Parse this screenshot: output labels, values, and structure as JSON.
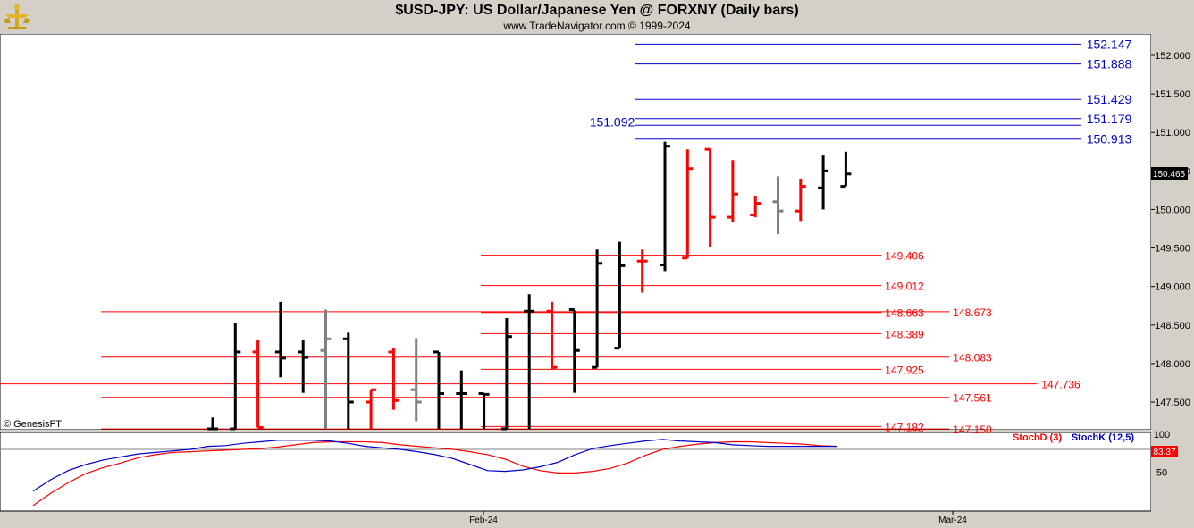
{
  "header": {
    "title": "$USD-JPY:  US Dollar/Japanese Yen @ FORXNY  (Daily bars)",
    "subtitle": "www.TradeNavigator.com © 1999-2024",
    "logo_icon": "gold-trophy-icon"
  },
  "watermark": "© GenesisFT",
  "chart_data": [
    {
      "type": "ohlc",
      "title": "$USD-JPY:  US Dollar/Japanese Yen @ FORXNY  (Daily bars)",
      "y_axis_ticks": [
        "152.000",
        "151.500",
        "151.000",
        "150.500",
        "150.000",
        "149.500",
        "149.000",
        "148.500",
        "148.000",
        "147.500"
      ],
      "ylim": [
        147.15,
        152.35
      ],
      "last_price": "150.465",
      "x_ticks": [
        "Feb-24",
        "Mar-24"
      ],
      "colors": {
        "up": "#000000",
        "down": "#ff0000",
        "neutral": "#808080"
      },
      "bars": [
        {
          "o": 147.13,
          "h": 147.3,
          "l": 147.13,
          "c": 147.15,
          "color": "black"
        },
        {
          "o": 147.15,
          "h": 148.53,
          "l": 147.15,
          "c": 148.15,
          "color": "black"
        },
        {
          "o": 148.15,
          "h": 148.3,
          "l": 147.17,
          "c": 147.17,
          "color": "red"
        },
        {
          "o": 148.15,
          "h": 148.8,
          "l": 147.82,
          "c": 148.07,
          "color": "black"
        },
        {
          "o": 148.15,
          "h": 148.3,
          "l": 147.62,
          "c": 148.08,
          "color": "black"
        },
        {
          "o": 148.17,
          "h": 148.7,
          "l": 147.13,
          "c": 148.32,
          "color": "gray"
        },
        {
          "o": 148.32,
          "h": 148.4,
          "l": 147.13,
          "c": 147.5,
          "color": "black"
        },
        {
          "o": 147.5,
          "h": 147.65,
          "l": 147.13,
          "c": 147.66,
          "color": "red"
        },
        {
          "o": 148.15,
          "h": 148.2,
          "l": 147.4,
          "c": 147.52,
          "color": "red"
        },
        {
          "o": 147.66,
          "h": 148.33,
          "l": 147.25,
          "c": 147.5,
          "color": "gray"
        },
        {
          "o": 148.15,
          "h": 148.15,
          "l": 147.13,
          "c": 147.61,
          "color": "black"
        },
        {
          "o": 147.61,
          "h": 147.91,
          "l": 147.13,
          "c": 147.61,
          "color": "black"
        },
        {
          "o": 147.61,
          "h": 147.61,
          "l": 147.13,
          "c": 147.6,
          "color": "black"
        },
        {
          "o": 147.13,
          "h": 148.59,
          "l": 147.13,
          "c": 148.35,
          "color": "black"
        },
        {
          "o": 148.68,
          "h": 148.9,
          "l": 147.13,
          "c": 148.68,
          "color": "black"
        },
        {
          "o": 148.68,
          "h": 148.8,
          "l": 147.92,
          "c": 147.95,
          "color": "red"
        },
        {
          "o": 148.7,
          "h": 148.69,
          "l": 147.62,
          "c": 148.17,
          "color": "black"
        },
        {
          "o": 147.95,
          "h": 149.48,
          "l": 147.95,
          "c": 149.3,
          "color": "black"
        },
        {
          "o": 148.2,
          "h": 149.58,
          "l": 148.2,
          "c": 149.27,
          "color": "black"
        },
        {
          "o": 149.33,
          "h": 149.48,
          "l": 148.92,
          "c": 149.33,
          "color": "red"
        },
        {
          "o": 149.28,
          "h": 150.88,
          "l": 149.2,
          "c": 150.82,
          "color": "black"
        },
        {
          "o": 149.37,
          "h": 150.78,
          "l": 149.37,
          "c": 150.53,
          "color": "red"
        },
        {
          "o": 150.78,
          "h": 150.78,
          "l": 149.51,
          "c": 149.9,
          "color": "red"
        },
        {
          "o": 149.9,
          "h": 150.64,
          "l": 149.83,
          "c": 150.2,
          "color": "red"
        },
        {
          "o": 149.93,
          "h": 150.18,
          "l": 149.9,
          "c": 150.08,
          "color": "red"
        },
        {
          "o": 150.1,
          "h": 150.43,
          "l": 149.68,
          "c": 149.98,
          "color": "gray"
        },
        {
          "o": 149.98,
          "h": 150.4,
          "l": 149.85,
          "c": 150.3,
          "color": "red"
        },
        {
          "o": 150.28,
          "h": 150.7,
          "l": 150.0,
          "c": 150.5,
          "color": "black"
        },
        {
          "o": 150.3,
          "h": 150.75,
          "l": 150.3,
          "c": 150.46,
          "color": "black"
        }
      ],
      "levels": [
        {
          "value": 152.147,
          "label": "152.147",
          "color": "#0000cc",
          "from": "upper"
        },
        {
          "value": 151.888,
          "label": "151.888",
          "color": "#0000cc",
          "from": "upper"
        },
        {
          "value": 151.429,
          "label": "151.429",
          "color": "#0000cc",
          "from": "upper"
        },
        {
          "value": 151.179,
          "label": "151.179",
          "color": "#0000cc",
          "from": "upper"
        },
        {
          "value": 151.092,
          "label": "151.092",
          "color": "#0000cc",
          "from": "upper-left"
        },
        {
          "value": 150.913,
          "label": "150.913",
          "color": "#0000cc",
          "from": "upper"
        },
        {
          "value": 149.406,
          "label": "149.406",
          "color": "#ff0000",
          "from": "mid"
        },
        {
          "value": 149.012,
          "label": "149.012",
          "color": "#ff0000",
          "from": "mid"
        },
        {
          "value": 148.673,
          "label": "148.673",
          "color": "#ff0000",
          "from": "left"
        },
        {
          "value": 148.663,
          "label": "148.663",
          "color": "#ff0000",
          "from": "mid"
        },
        {
          "value": 148.389,
          "label": "148.389",
          "color": "#ff0000",
          "from": "mid"
        },
        {
          "value": 148.083,
          "label": "148.083",
          "color": "#ff0000",
          "from": "left"
        },
        {
          "value": 147.925,
          "label": "147.925",
          "color": "#ff0000",
          "from": "mid"
        },
        {
          "value": 147.736,
          "label": "147.736",
          "color": "#ff0000",
          "from": "far-left"
        },
        {
          "value": 147.561,
          "label": "147.561",
          "color": "#ff0000",
          "from": "left"
        },
        {
          "value": 147.182,
          "label": "147.182",
          "color": "#ff0000",
          "from": "mid"
        },
        {
          "value": 147.15,
          "label": "147.150",
          "color": "#ff0000",
          "from": "left"
        }
      ]
    },
    {
      "type": "line",
      "series": [
        {
          "name": "StochD (3)",
          "color": "#ff0000",
          "values": [
            6,
            22,
            36,
            48,
            56,
            62,
            69,
            73,
            76,
            77,
            78,
            79,
            80,
            81,
            83,
            86,
            89,
            90,
            90,
            90,
            89,
            86,
            84,
            82,
            80,
            77,
            73,
            67,
            58,
            52,
            49,
            49,
            51,
            55,
            62,
            72,
            80,
            84,
            87,
            89,
            90,
            90,
            89,
            88,
            87,
            85,
            84
          ]
        },
        {
          "name": "StochK (12,5)",
          "color": "#0000cc",
          "values": [
            25,
            40,
            52,
            60,
            66,
            70,
            74,
            76,
            78,
            80,
            84,
            85,
            88,
            90,
            92,
            92,
            92,
            91,
            88,
            84,
            82,
            80,
            77,
            73,
            68,
            60,
            52,
            51,
            53,
            57,
            63,
            73,
            81,
            85,
            88,
            91,
            93,
            91,
            90,
            89,
            86,
            85,
            84,
            84,
            84,
            84,
            84
          ]
        }
      ],
      "y_axis_ticks": [
        "100",
        "50"
      ],
      "ylim": [
        0,
        100
      ],
      "last_value": "83.37"
    }
  ]
}
